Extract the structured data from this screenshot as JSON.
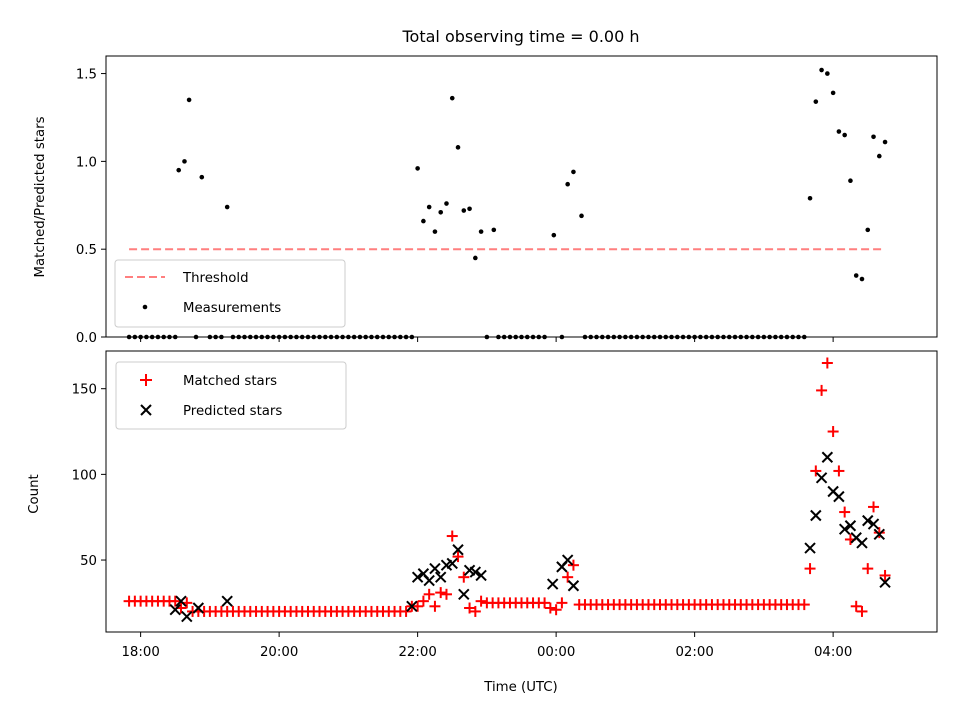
{
  "chart_data": [
    {
      "type": "scatter",
      "title": "Total observing time = 0.00 h",
      "xlabel": "",
      "ylabel": "Matched/Predicted stars",
      "xlim": [
        "17:30",
        "05:30"
      ],
      "ylim": [
        0,
        1.6
      ],
      "yticks": [
        "0.0",
        "0.5",
        "1.0",
        "1.5"
      ],
      "legend": "lower-left",
      "grid": false,
      "colors": {
        "threshold": "#ff7f7f",
        "measurements": "#000000"
      },
      "threshold": {
        "name": "Threshold",
        "value": 0.5,
        "x": [
          "17:50",
          "04:45"
        ]
      },
      "measurements": {
        "name": "Measurements",
        "points": [
          [
            "17:50",
            0
          ],
          [
            "17:55",
            0
          ],
          [
            "18:00",
            0
          ],
          [
            "18:05",
            0
          ],
          [
            "18:10",
            0
          ],
          [
            "18:15",
            0
          ],
          [
            "18:20",
            0
          ],
          [
            "18:25",
            0
          ],
          [
            "18:30",
            0
          ],
          [
            "18:33",
            0.95
          ],
          [
            "18:38",
            1.0
          ],
          [
            "18:42",
            1.35
          ],
          [
            "18:48",
            0
          ],
          [
            "18:53",
            0.91
          ],
          [
            "19:00",
            0
          ],
          [
            "19:05",
            0
          ],
          [
            "19:10",
            0
          ],
          [
            "19:15",
            0.74
          ],
          [
            "19:20",
            0
          ],
          [
            "19:25",
            0
          ],
          [
            "19:30",
            0
          ],
          [
            "19:35",
            0
          ],
          [
            "19:40",
            0
          ],
          [
            "19:45",
            0
          ],
          [
            "19:50",
            0
          ],
          [
            "19:55",
            0
          ],
          [
            "20:00",
            0
          ],
          [
            "20:05",
            0
          ],
          [
            "20:10",
            0
          ],
          [
            "20:15",
            0
          ],
          [
            "20:20",
            0
          ],
          [
            "20:25",
            0
          ],
          [
            "20:30",
            0
          ],
          [
            "20:35",
            0
          ],
          [
            "20:40",
            0
          ],
          [
            "20:45",
            0
          ],
          [
            "20:50",
            0
          ],
          [
            "20:55",
            0
          ],
          [
            "21:00",
            0
          ],
          [
            "21:05",
            0
          ],
          [
            "21:10",
            0
          ],
          [
            "21:15",
            0
          ],
          [
            "21:20",
            0
          ],
          [
            "21:25",
            0
          ],
          [
            "21:30",
            0
          ],
          [
            "21:35",
            0
          ],
          [
            "21:40",
            0
          ],
          [
            "21:45",
            0
          ],
          [
            "21:50",
            0
          ],
          [
            "21:55",
            0
          ],
          [
            "22:00",
            0.96
          ],
          [
            "22:05",
            0.66
          ],
          [
            "22:10",
            0.74
          ],
          [
            "22:15",
            0.6
          ],
          [
            "22:20",
            0.71
          ],
          [
            "22:25",
            0.76
          ],
          [
            "22:30",
            1.36
          ],
          [
            "22:35",
            1.08
          ],
          [
            "22:40",
            0.72
          ],
          [
            "22:45",
            0.73
          ],
          [
            "22:50",
            0.45
          ],
          [
            "22:55",
            0.6
          ],
          [
            "23:00",
            0
          ],
          [
            "23:06",
            0.61
          ],
          [
            "23:10",
            0
          ],
          [
            "23:15",
            0
          ],
          [
            "23:20",
            0
          ],
          [
            "23:25",
            0
          ],
          [
            "23:30",
            0
          ],
          [
            "23:35",
            0
          ],
          [
            "23:40",
            0
          ],
          [
            "23:45",
            0
          ],
          [
            "23:50",
            0
          ],
          [
            "23:58",
            0.58
          ],
          [
            "00:05",
            0
          ],
          [
            "00:10",
            0.87
          ],
          [
            "00:15",
            0.94
          ],
          [
            "00:22",
            0.69
          ],
          [
            "00:25",
            0
          ],
          [
            "00:30",
            0
          ],
          [
            "00:35",
            0
          ],
          [
            "00:40",
            0
          ],
          [
            "00:45",
            0
          ],
          [
            "00:50",
            0
          ],
          [
            "00:55",
            0
          ],
          [
            "01:00",
            0
          ],
          [
            "01:05",
            0
          ],
          [
            "01:10",
            0
          ],
          [
            "01:15",
            0
          ],
          [
            "01:20",
            0
          ],
          [
            "01:25",
            0
          ],
          [
            "01:30",
            0
          ],
          [
            "01:35",
            0
          ],
          [
            "01:40",
            0
          ],
          [
            "01:45",
            0
          ],
          [
            "01:50",
            0
          ],
          [
            "01:55",
            0
          ],
          [
            "02:00",
            0
          ],
          [
            "02:05",
            0
          ],
          [
            "02:10",
            0
          ],
          [
            "02:15",
            0
          ],
          [
            "02:20",
            0
          ],
          [
            "02:25",
            0
          ],
          [
            "02:30",
            0
          ],
          [
            "02:35",
            0
          ],
          [
            "02:40",
            0
          ],
          [
            "02:45",
            0
          ],
          [
            "02:50",
            0
          ],
          [
            "02:55",
            0
          ],
          [
            "03:00",
            0
          ],
          [
            "03:05",
            0
          ],
          [
            "03:10",
            0
          ],
          [
            "03:15",
            0
          ],
          [
            "03:20",
            0
          ],
          [
            "03:25",
            0
          ],
          [
            "03:30",
            0
          ],
          [
            "03:35",
            0
          ],
          [
            "03:40",
            0.79
          ],
          [
            "03:45",
            1.34
          ],
          [
            "03:50",
            1.52
          ],
          [
            "03:55",
            1.5
          ],
          [
            "04:00",
            1.39
          ],
          [
            "04:05",
            1.17
          ],
          [
            "04:10",
            1.15
          ],
          [
            "04:15",
            0.89
          ],
          [
            "04:20",
            0.35
          ],
          [
            "04:25",
            0.33
          ],
          [
            "04:30",
            0.61
          ],
          [
            "04:35",
            1.14
          ],
          [
            "04:40",
            1.03
          ],
          [
            "04:45",
            1.11
          ]
        ]
      }
    },
    {
      "type": "scatter",
      "title": "",
      "xlabel": "Time (UTC)",
      "ylabel": "Count",
      "xlim": [
        "17:30",
        "05:30"
      ],
      "ylim": [
        8,
        172
      ],
      "xticks": [
        "18:00",
        "20:00",
        "22:00",
        "00:00",
        "02:00",
        "04:00"
      ],
      "yticks": [
        "50",
        "100",
        "150"
      ],
      "legend": "top-left",
      "grid": false,
      "colors": {
        "matched": "#ff0000",
        "predicted": "#000000"
      },
      "matched": {
        "name": "Matched stars",
        "points": [
          [
            "17:50",
            26
          ],
          [
            "17:55",
            26
          ],
          [
            "18:00",
            26
          ],
          [
            "18:05",
            26
          ],
          [
            "18:10",
            26
          ],
          [
            "18:15",
            26
          ],
          [
            "18:20",
            26
          ],
          [
            "18:25",
            26
          ],
          [
            "18:30",
            26
          ],
          [
            "18:35",
            22
          ],
          [
            "18:40",
            25
          ],
          [
            "18:45",
            20
          ],
          [
            "18:50",
            20
          ],
          [
            "18:55",
            20
          ],
          [
            "19:00",
            20
          ],
          [
            "19:05",
            20
          ],
          [
            "19:10",
            20
          ],
          [
            "19:15",
            20
          ],
          [
            "19:20",
            20
          ],
          [
            "19:25",
            20
          ],
          [
            "19:30",
            20
          ],
          [
            "19:35",
            20
          ],
          [
            "19:40",
            20
          ],
          [
            "19:45",
            20
          ],
          [
            "19:50",
            20
          ],
          [
            "19:55",
            20
          ],
          [
            "20:00",
            20
          ],
          [
            "20:05",
            20
          ],
          [
            "20:10",
            20
          ],
          [
            "20:15",
            20
          ],
          [
            "20:20",
            20
          ],
          [
            "20:25",
            20
          ],
          [
            "20:30",
            20
          ],
          [
            "20:35",
            20
          ],
          [
            "20:40",
            20
          ],
          [
            "20:45",
            20
          ],
          [
            "20:50",
            20
          ],
          [
            "20:55",
            20
          ],
          [
            "21:00",
            20
          ],
          [
            "21:05",
            20
          ],
          [
            "21:10",
            20
          ],
          [
            "21:15",
            20
          ],
          [
            "21:20",
            20
          ],
          [
            "21:25",
            20
          ],
          [
            "21:30",
            20
          ],
          [
            "21:35",
            20
          ],
          [
            "21:40",
            20
          ],
          [
            "21:45",
            20
          ],
          [
            "21:50",
            20
          ],
          [
            "21:55",
            23
          ],
          [
            "22:00",
            23
          ],
          [
            "22:05",
            26
          ],
          [
            "22:10",
            30
          ],
          [
            "22:15",
            23
          ],
          [
            "22:20",
            31
          ],
          [
            "22:25",
            30
          ],
          [
            "22:30",
            64
          ],
          [
            "22:35",
            52
          ],
          [
            "22:40",
            40
          ],
          [
            "22:45",
            22
          ],
          [
            "22:50",
            20
          ],
          [
            "22:55",
            26
          ],
          [
            "23:00",
            25
          ],
          [
            "23:05",
            25
          ],
          [
            "23:10",
            25
          ],
          [
            "23:15",
            25
          ],
          [
            "23:20",
            25
          ],
          [
            "23:25",
            25
          ],
          [
            "23:30",
            25
          ],
          [
            "23:35",
            25
          ],
          [
            "23:40",
            25
          ],
          [
            "23:45",
            25
          ],
          [
            "23:50",
            25
          ],
          [
            "23:55",
            22
          ],
          [
            "00:00",
            21
          ],
          [
            "00:05",
            25
          ],
          [
            "00:10",
            40
          ],
          [
            "00:15",
            47
          ],
          [
            "00:20",
            24
          ],
          [
            "00:25",
            24
          ],
          [
            "00:30",
            24
          ],
          [
            "00:35",
            24
          ],
          [
            "00:40",
            24
          ],
          [
            "00:45",
            24
          ],
          [
            "00:50",
            24
          ],
          [
            "00:55",
            24
          ],
          [
            "01:00",
            24
          ],
          [
            "01:05",
            24
          ],
          [
            "01:10",
            24
          ],
          [
            "01:15",
            24
          ],
          [
            "01:20",
            24
          ],
          [
            "01:25",
            24
          ],
          [
            "01:30",
            24
          ],
          [
            "01:35",
            24
          ],
          [
            "01:40",
            24
          ],
          [
            "01:45",
            24
          ],
          [
            "01:50",
            24
          ],
          [
            "01:55",
            24
          ],
          [
            "02:00",
            24
          ],
          [
            "02:05",
            24
          ],
          [
            "02:10",
            24
          ],
          [
            "02:15",
            24
          ],
          [
            "02:20",
            24
          ],
          [
            "02:25",
            24
          ],
          [
            "02:30",
            24
          ],
          [
            "02:35",
            24
          ],
          [
            "02:40",
            24
          ],
          [
            "02:45",
            24
          ],
          [
            "02:50",
            24
          ],
          [
            "02:55",
            24
          ],
          [
            "03:00",
            24
          ],
          [
            "03:05",
            24
          ],
          [
            "03:10",
            24
          ],
          [
            "03:15",
            24
          ],
          [
            "03:20",
            24
          ],
          [
            "03:25",
            24
          ],
          [
            "03:30",
            24
          ],
          [
            "03:35",
            24
          ],
          [
            "03:40",
            45
          ],
          [
            "03:45",
            102
          ],
          [
            "03:50",
            149
          ],
          [
            "03:55",
            165
          ],
          [
            "04:00",
            125
          ],
          [
            "04:05",
            102
          ],
          [
            "04:10",
            78
          ],
          [
            "04:15",
            62
          ],
          [
            "04:20",
            23
          ],
          [
            "04:25",
            20
          ],
          [
            "04:30",
            45
          ],
          [
            "04:35",
            81
          ],
          [
            "04:40",
            66
          ],
          [
            "04:45",
            41
          ]
        ]
      },
      "predicted": {
        "name": "Predicted stars",
        "points": [
          [
            "18:30",
            21
          ],
          [
            "18:35",
            26
          ],
          [
            "18:40",
            17
          ],
          [
            "18:50",
            22
          ],
          [
            "19:15",
            26
          ],
          [
            "21:55",
            23
          ],
          [
            "22:00",
            40
          ],
          [
            "22:05",
            42
          ],
          [
            "22:10",
            38
          ],
          [
            "22:15",
            45
          ],
          [
            "22:20",
            40
          ],
          [
            "22:25",
            47
          ],
          [
            "22:30",
            48
          ],
          [
            "22:35",
            56
          ],
          [
            "22:40",
            30
          ],
          [
            "22:45",
            44
          ],
          [
            "22:50",
            43
          ],
          [
            "22:55",
            41
          ],
          [
            "23:57",
            36
          ],
          [
            "00:05",
            46
          ],
          [
            "00:10",
            50
          ],
          [
            "00:15",
            35
          ],
          [
            "03:40",
            57
          ],
          [
            "03:45",
            76
          ],
          [
            "03:50",
            98
          ],
          [
            "03:55",
            110
          ],
          [
            "04:00",
            90
          ],
          [
            "04:05",
            87
          ],
          [
            "04:10",
            68
          ],
          [
            "04:15",
            70
          ],
          [
            "04:20",
            63
          ],
          [
            "04:25",
            60
          ],
          [
            "04:30",
            73
          ],
          [
            "04:35",
            71
          ],
          [
            "04:40",
            65
          ],
          [
            "04:45",
            37
          ]
        ]
      }
    }
  ]
}
